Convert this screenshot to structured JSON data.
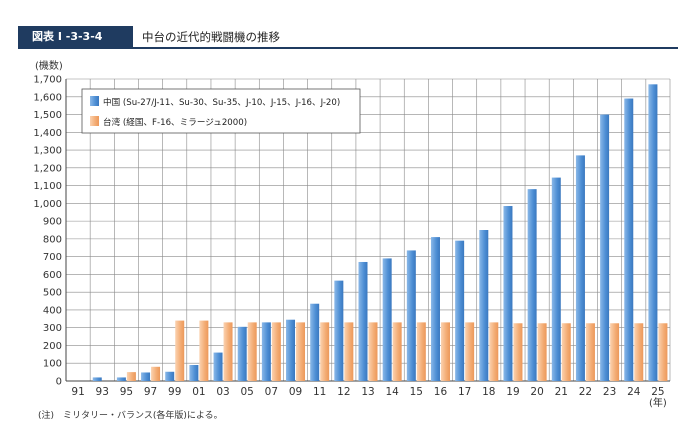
{
  "header": {
    "tag": "図表 I -3-3-4",
    "title": "中台の近代的戦闘機の推移"
  },
  "note": "(注)　ミリタリー・バランス(各年版)による。",
  "colors": {
    "header_bg": "#1f3b60",
    "china": "#4d8ed4",
    "taiwan": "#f0a468"
  },
  "chart_data": {
    "type": "bar",
    "ylabel": "(機数)",
    "xlabel": "(年)",
    "ylim": [
      0,
      1700
    ],
    "ytick_step": 100,
    "grid": true,
    "legend_position": "top-left",
    "categories": [
      "91",
      "93",
      "95",
      "97",
      "99",
      "01",
      "03",
      "05",
      "07",
      "09",
      "11",
      "12",
      "13",
      "14",
      "15",
      "16",
      "17",
      "18",
      "19",
      "20",
      "21",
      "22",
      "23",
      "24",
      "25"
    ],
    "series": [
      {
        "name": "中国 (Su-27/J-11、Su-30、Su-35、J-10、J-15、J-16、J-20)",
        "values": [
          0,
          20,
          20,
          48,
          52,
          90,
          160,
          305,
          330,
          345,
          435,
          565,
          670,
          690,
          735,
          810,
          790,
          850,
          985,
          1080,
          1145,
          1270,
          1500,
          1590,
          1670
        ]
      },
      {
        "name": "台湾 (経国、F-16、ミラージュ2000)",
        "values": [
          0,
          0,
          50,
          80,
          340,
          340,
          330,
          330,
          330,
          330,
          330,
          330,
          330,
          330,
          330,
          330,
          330,
          330,
          325,
          325,
          325,
          325,
          325,
          325,
          325
        ]
      }
    ]
  }
}
